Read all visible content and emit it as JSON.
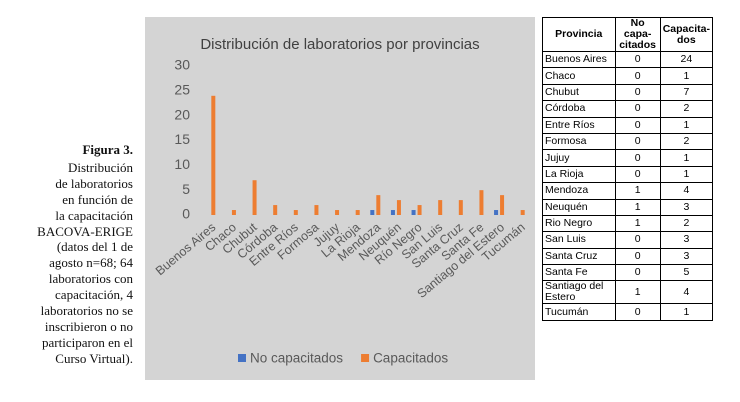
{
  "caption": {
    "label": "Figura 3.",
    "lines": [
      "Distribución",
      "de laboratorios",
      "en función de",
      "la capacitación",
      "BACOVA-ERIGE",
      "(datos del 1 de",
      "agosto n=68; 64",
      "laboratorios con",
      "capacitación, 4",
      "laboratorios no se",
      "inscribieron o no",
      "participaron en el",
      "Curso Virtual)."
    ]
  },
  "chart_data": {
    "type": "bar",
    "title": "Distribución de laboratorios por provincias",
    "categories": [
      "Buenos Aires",
      "Chaco",
      "Chubut",
      "Córdoba",
      "Entre Ríos",
      "Formosa",
      "Jujuy",
      "La Rioja",
      "Mendoza",
      "Neuquén",
      "Río Negro",
      "San Luis",
      "Santa Cruz",
      "Santa Fe",
      "Santiago del Estero",
      "Tucumán"
    ],
    "series": [
      {
        "name": "No capacitados",
        "color": "#4472c4",
        "values": [
          0,
          0,
          0,
          0,
          0,
          0,
          0,
          0,
          1,
          1,
          1,
          0,
          0,
          0,
          1,
          0
        ]
      },
      {
        "name": "Capacitados",
        "color": "#ed7d31",
        "values": [
          24,
          1,
          7,
          2,
          1,
          2,
          1,
          1,
          4,
          3,
          2,
          3,
          3,
          5,
          4,
          1
        ]
      }
    ],
    "ylim": [
      0,
      30
    ],
    "yticks": [
      0,
      5,
      10,
      15,
      20,
      25,
      30
    ],
    "legend": "bottom"
  },
  "table": {
    "header": [
      [
        "Provincia"
      ],
      [
        "No capa-",
        "citados"
      ],
      [
        "Capacita-",
        "dos"
      ]
    ],
    "rows": [
      [
        "Buenos Aires",
        0,
        24
      ],
      [
        "Chaco",
        0,
        1
      ],
      [
        "Chubut",
        0,
        7
      ],
      [
        "Córdoba",
        0,
        2
      ],
      [
        "Entre Ríos",
        0,
        1
      ],
      [
        "Formosa",
        0,
        2
      ],
      [
        "Jujuy",
        0,
        1
      ],
      [
        "La Rioja",
        0,
        1
      ],
      [
        "Mendoza",
        1,
        4
      ],
      [
        "Neuquén",
        1,
        3
      ],
      [
        "Rio Negro",
        1,
        2
      ],
      [
        "San Luis",
        0,
        3
      ],
      [
        "Santa Cruz",
        0,
        3
      ],
      [
        "Santa Fe",
        0,
        5
      ],
      [
        "Santiago del Estero",
        1,
        4
      ],
      [
        "Tucumán",
        0,
        1
      ]
    ]
  }
}
